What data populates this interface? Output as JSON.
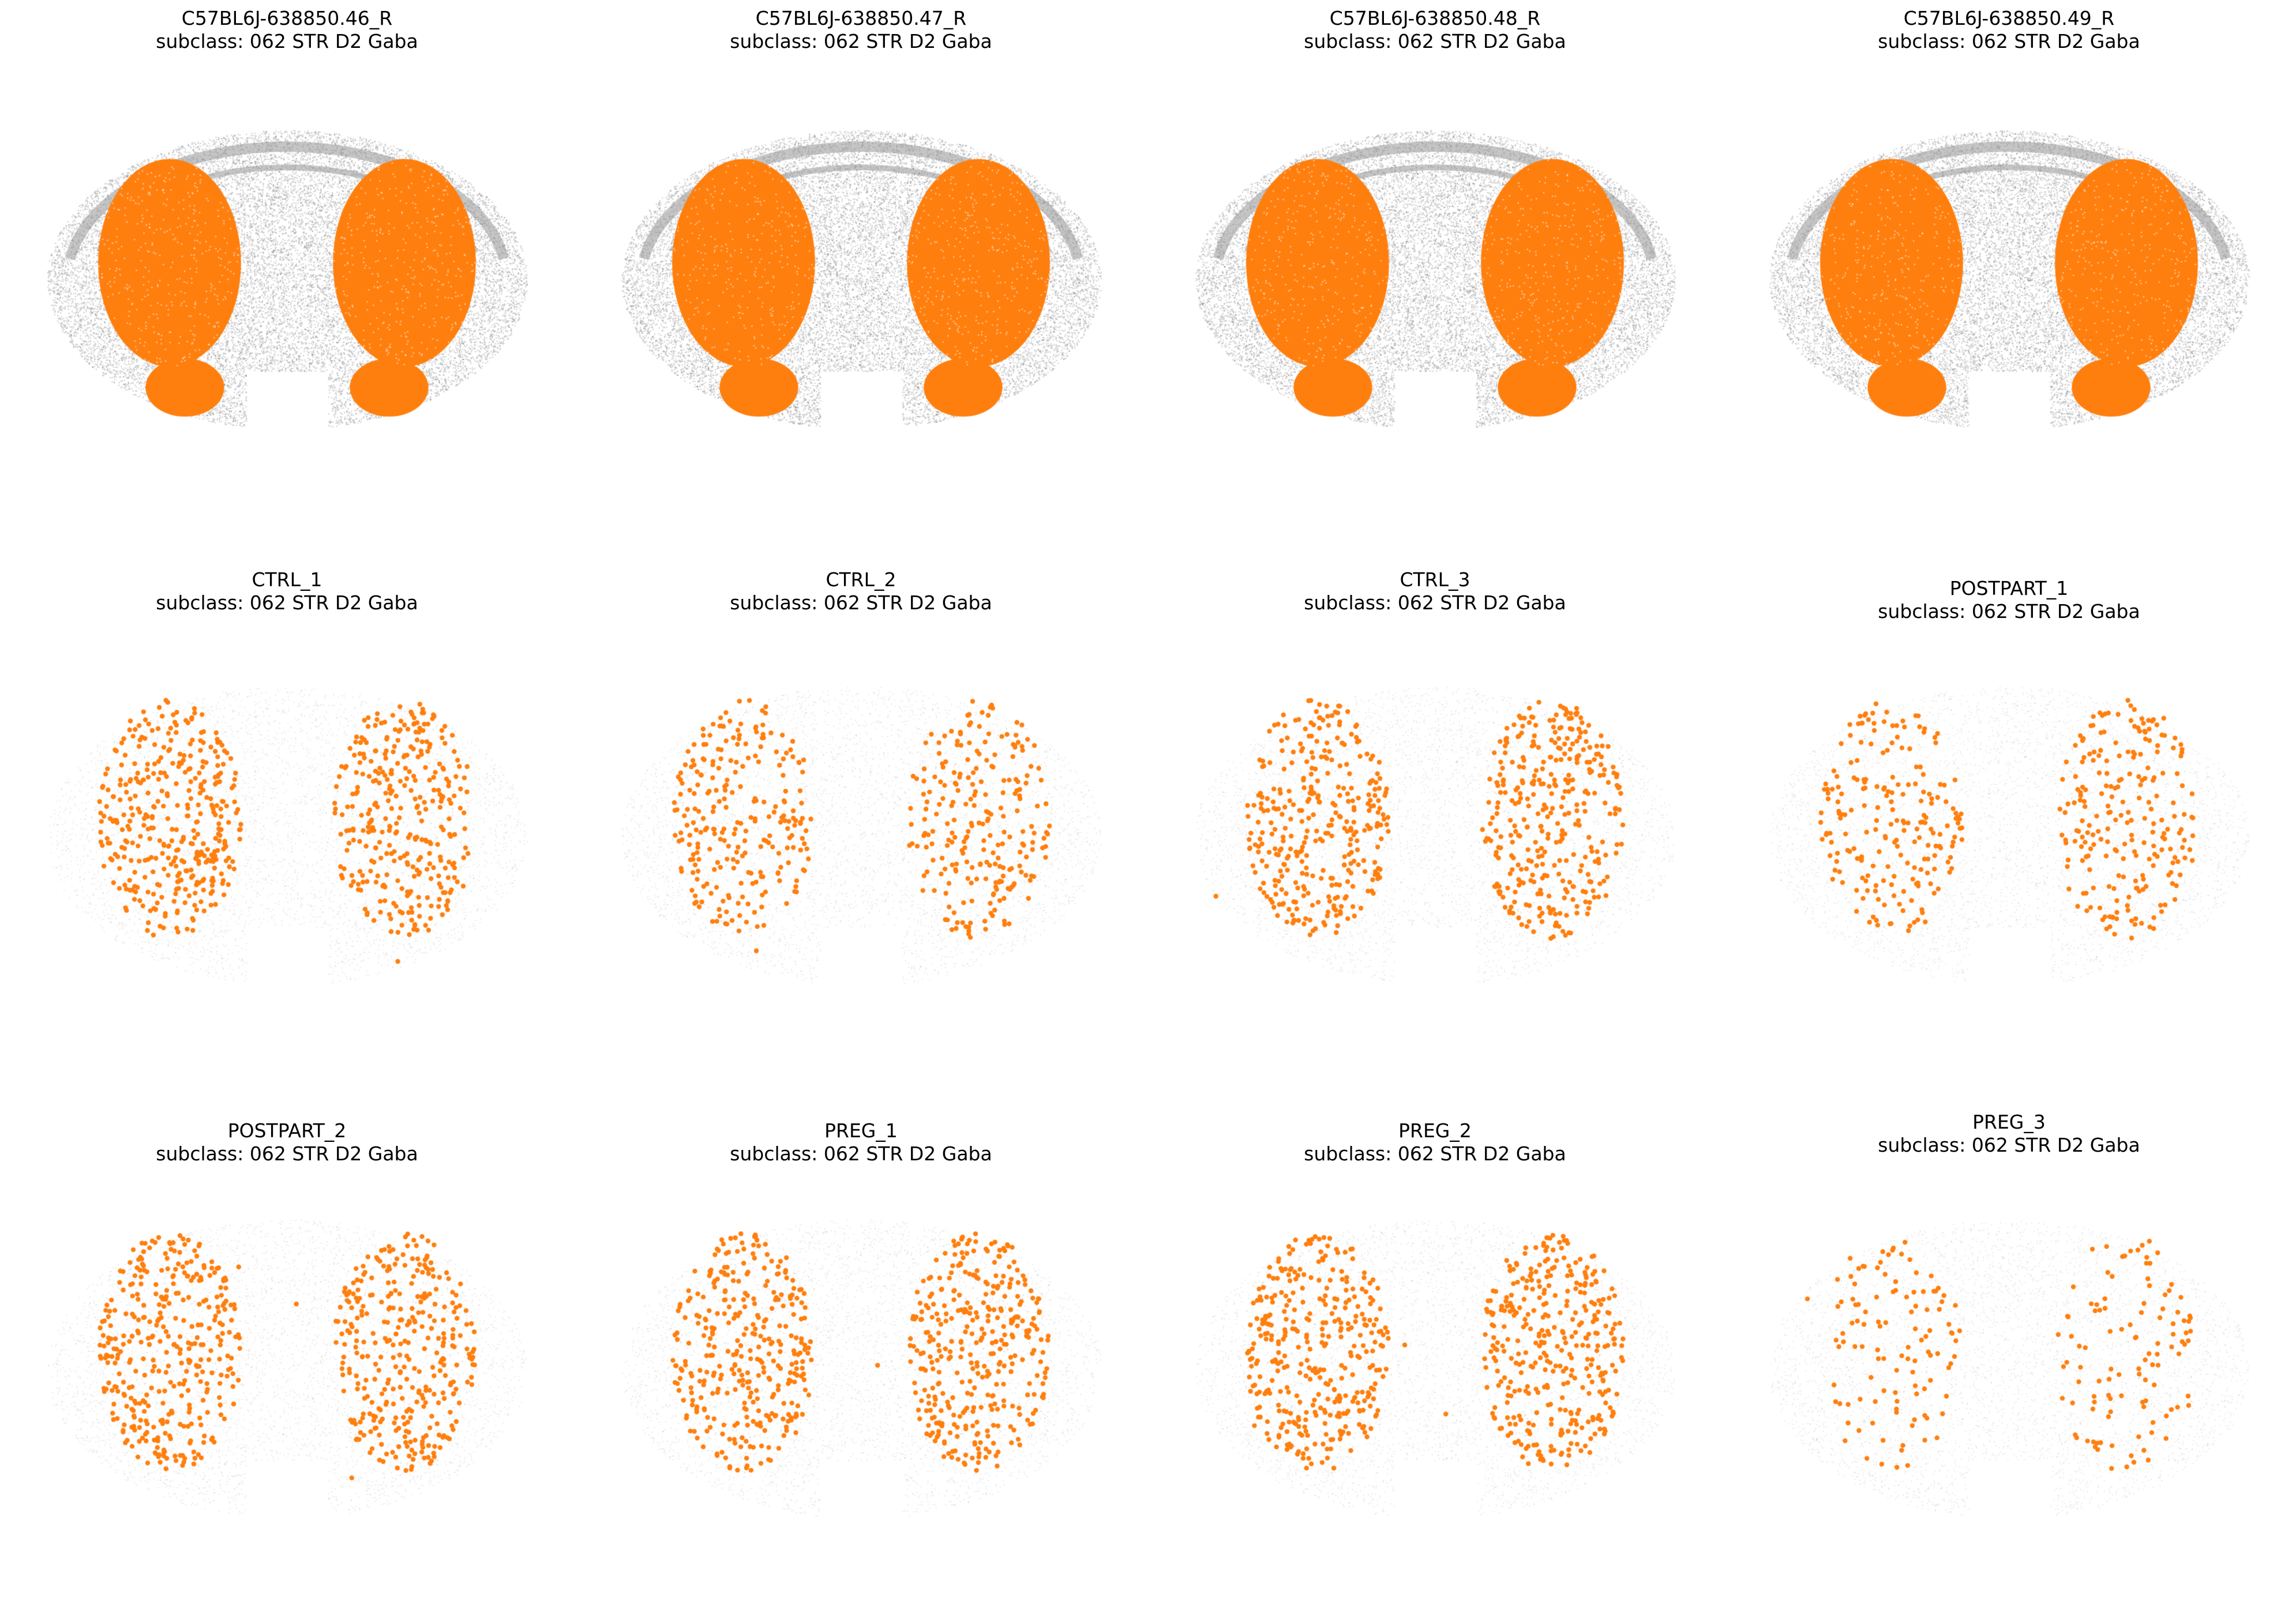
{
  "colors": {
    "highlight": "#ff7f0e",
    "background_cells": "#a0a0a0"
  },
  "panels": [
    {
      "sample": "C57BL6J-638850.46_R",
      "subtitle": "subclass: 062 STR D2 Gaba",
      "style": "dense"
    },
    {
      "sample": "C57BL6J-638850.47_R",
      "subtitle": "subclass: 062 STR D2 Gaba",
      "style": "dense"
    },
    {
      "sample": "C57BL6J-638850.48_R",
      "subtitle": "subclass: 062 STR D2 Gaba",
      "style": "dense"
    },
    {
      "sample": "C57BL6J-638850.49_R",
      "subtitle": "subclass: 062 STR D2 Gaba",
      "style": "dense"
    },
    {
      "sample": "CTRL_1",
      "subtitle": "subclass: 062 STR D2 Gaba",
      "style": "sparse"
    },
    {
      "sample": "CTRL_2",
      "subtitle": "subclass: 062 STR D2 Gaba",
      "style": "sparse"
    },
    {
      "sample": "CTRL_3",
      "subtitle": "subclass: 062 STR D2 Gaba",
      "style": "sparse"
    },
    {
      "sample": "POSTPART_1",
      "subtitle": "subclass: 062 STR D2 Gaba",
      "style": "sparse"
    },
    {
      "sample": "POSTPART_2",
      "subtitle": "subclass: 062 STR D2 Gaba",
      "style": "sparse"
    },
    {
      "sample": "PREG_1",
      "subtitle": "subclass: 062 STR D2 Gaba",
      "style": "sparse"
    },
    {
      "sample": "PREG_2",
      "subtitle": "subclass: 062 STR D2 Gaba",
      "style": "sparse"
    },
    {
      "sample": "PREG_3",
      "subtitle": "subclass: 062 STR D2 Gaba",
      "style": "sparse"
    }
  ]
}
